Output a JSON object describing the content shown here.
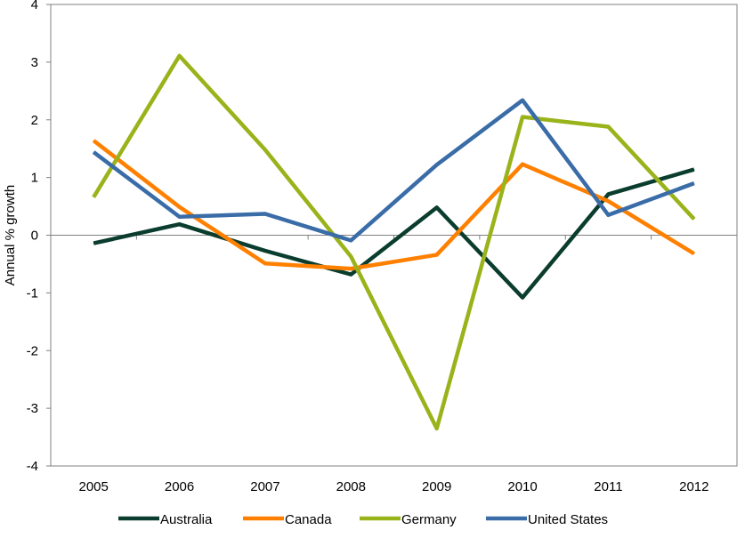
{
  "chart_data": {
    "type": "line",
    "title": "",
    "xlabel": "",
    "ylabel": "Annual % growth",
    "ylim": [
      -4,
      4
    ],
    "yticks": [
      4,
      3,
      2,
      1,
      0,
      -1,
      -2,
      -3,
      -4
    ],
    "categories": [
      "2005",
      "2006",
      "2007",
      "2008",
      "2009",
      "2010",
      "2011",
      "2012"
    ],
    "grid": false,
    "legend_position": "bottom",
    "series": [
      {
        "name": "Australia",
        "color": "#0b3d2e",
        "values": [
          -0.14,
          0.19,
          -0.27,
          -0.68,
          0.48,
          -1.08,
          0.71,
          1.14
        ]
      },
      {
        "name": "Canada",
        "color": "#ff8000",
        "values": [
          1.64,
          0.49,
          -0.49,
          -0.58,
          -0.34,
          1.23,
          0.59,
          -0.32
        ]
      },
      {
        "name": "Germany",
        "color": "#99b31a",
        "values": [
          0.66,
          3.11,
          1.48,
          -0.37,
          -3.35,
          2.05,
          1.88,
          0.28
        ]
      },
      {
        "name": "United States",
        "color": "#3a6ca8",
        "values": [
          1.44,
          0.32,
          0.37,
          -0.09,
          1.22,
          2.34,
          0.35,
          0.9
        ]
      }
    ]
  }
}
